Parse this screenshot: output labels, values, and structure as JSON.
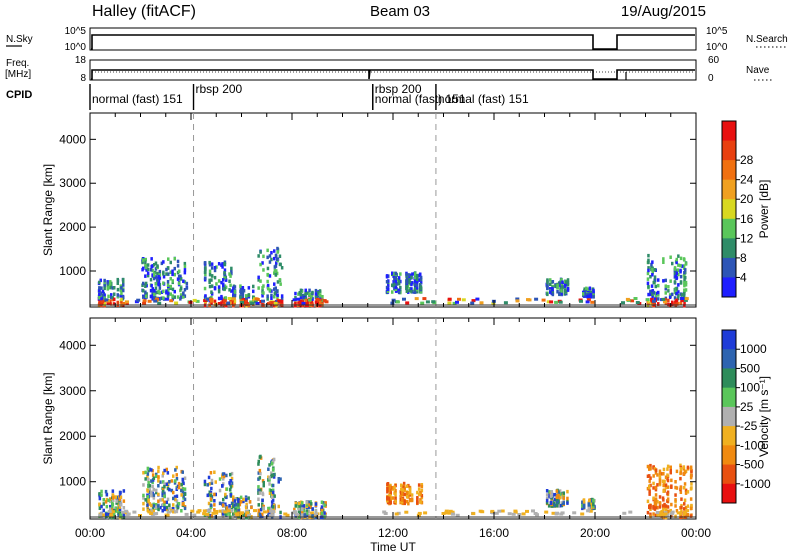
{
  "header": {
    "left": "Halley (fitACF)",
    "center": "Beam 03",
    "right": "19/Aug/2015"
  },
  "top_panels": {
    "nsky_label": "N.Sky",
    "nsky_ticks": [
      "10^5",
      "10^0"
    ],
    "nsearch_label": "N.Search",
    "nsearch_ticks": [
      "10^5",
      "10^0"
    ],
    "freq_label_1": "Freq.",
    "freq_label_2": "[MHz]",
    "freq_ticks": [
      "18",
      "8"
    ],
    "nave_label": "Nave",
    "nave_ticks": [
      "60",
      "0"
    ],
    "cpid_label": "CPID",
    "cpid_segments": [
      {
        "label": "normal (fast) 151",
        "start_hour": 0,
        "end_hour": 4.1
      },
      {
        "label": "rbsp 200",
        "start_hour": 4.1,
        "end_hour": 11.2
      },
      {
        "label": "rbsp 200",
        "start_hour": 11.2,
        "end_hour": 13.7
      },
      {
        "label": "normal (fast) 151",
        "start_hour": 11.2,
        "end_hour": 13.7
      },
      {
        "label": "normal (fast) 151",
        "start_hour": 13.7,
        "end_hour": 24
      }
    ]
  },
  "chart_data": [
    {
      "type": "heatmap",
      "title": "",
      "xlabel": "",
      "ylabel": "Slant Range [km]",
      "xlim": [
        0,
        24
      ],
      "ylim": [
        180,
        4600
      ],
      "yticks": [
        "1000",
        "2000",
        "3000",
        "4000"
      ],
      "colorbar_label": "Power [dB]",
      "colorbar_ticks": [
        "4",
        "8",
        "12",
        "16",
        "20",
        "24",
        "28"
      ],
      "colorbar_colors": [
        "#1f1fff",
        "#2d55b6",
        "#2f8c68",
        "#5ac65a",
        "#d8d820",
        "#f0a020",
        "#f07010",
        "#e84010",
        "#e81010"
      ],
      "echo_regions": [
        {
          "start_hour": 0.3,
          "end_hour": 1.3,
          "min_km": 250,
          "max_km": 850
        },
        {
          "start_hour": 2.0,
          "end_hour": 3.8,
          "min_km": 400,
          "max_km": 1350
        },
        {
          "start_hour": 4.5,
          "end_hour": 5.6,
          "min_km": 250,
          "max_km": 1250
        },
        {
          "start_hour": 5.6,
          "end_hour": 6.5,
          "min_km": 250,
          "max_km": 700
        },
        {
          "start_hour": 6.6,
          "end_hour": 7.6,
          "min_km": 250,
          "max_km": 1600
        },
        {
          "start_hour": 8.0,
          "end_hour": 9.3,
          "min_km": 250,
          "max_km": 600
        },
        {
          "start_hour": 11.7,
          "end_hour": 13.1,
          "min_km": 550,
          "max_km": 1000
        },
        {
          "start_hour": 18.0,
          "end_hour": 18.9,
          "min_km": 500,
          "max_km": 850
        },
        {
          "start_hour": 19.4,
          "end_hour": 20.0,
          "min_km": 450,
          "max_km": 650
        },
        {
          "start_hour": 22.0,
          "end_hour": 23.8,
          "min_km": 250,
          "max_km": 1400
        }
      ]
    },
    {
      "type": "heatmap",
      "title": "",
      "xlabel": "Time UT",
      "ylabel": "Slant Range [km]",
      "xlim": [
        0,
        24
      ],
      "ylim": [
        180,
        4600
      ],
      "xticks": [
        "00:00",
        "04:00",
        "08:00",
        "12:00",
        "16:00",
        "20:00",
        "00:00"
      ],
      "yticks": [
        "1000",
        "2000",
        "3000",
        "4000"
      ],
      "colorbar_label": "Velocity [m s⁻¹]",
      "colorbar_ticks": [
        "1000",
        "500",
        "100",
        "25",
        "-25",
        "-100",
        "-500",
        "-1000"
      ],
      "colorbar_colors": [
        "#1f3cd8",
        "#2e64b0",
        "#2e8c5a",
        "#5ac65a",
        "#b0b0b0",
        "#f0b020",
        "#f08a10",
        "#e85010",
        "#e81010"
      ],
      "echo_regions": [
        {
          "start_hour": 0.3,
          "end_hour": 1.3,
          "min_km": 250,
          "max_km": 850
        },
        {
          "start_hour": 2.0,
          "end_hour": 3.8,
          "min_km": 400,
          "max_km": 1350
        },
        {
          "start_hour": 4.5,
          "end_hour": 5.6,
          "min_km": 250,
          "max_km": 1250
        },
        {
          "start_hour": 5.6,
          "end_hour": 6.5,
          "min_km": 250,
          "max_km": 700
        },
        {
          "start_hour": 6.6,
          "end_hour": 7.6,
          "min_km": 250,
          "max_km": 1600
        },
        {
          "start_hour": 8.0,
          "end_hour": 9.3,
          "min_km": 250,
          "max_km": 600
        },
        {
          "start_hour": 11.7,
          "end_hour": 13.1,
          "min_km": 550,
          "max_km": 1000
        },
        {
          "start_hour": 18.0,
          "end_hour": 18.9,
          "min_km": 500,
          "max_km": 850
        },
        {
          "start_hour": 19.4,
          "end_hour": 20.0,
          "min_km": 450,
          "max_km": 650
        },
        {
          "start_hour": 22.0,
          "end_hour": 23.8,
          "min_km": 250,
          "max_km": 1400
        }
      ]
    }
  ]
}
